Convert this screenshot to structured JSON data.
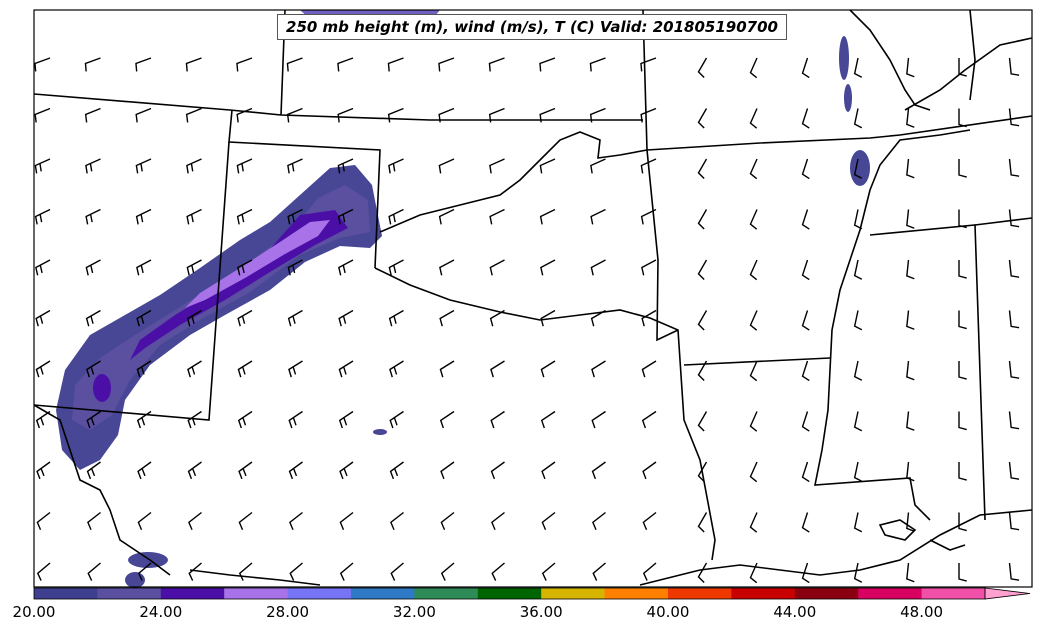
{
  "title": "250 mb height (m), wind (m/s), T (C) Valid: 201805190700",
  "colorbar": {
    "min": 20,
    "max": 52,
    "extend": "max",
    "tick_labels": [
      "20.00",
      "24.00",
      "28.00",
      "32.00",
      "36.00",
      "40.00",
      "44.00",
      "48.00"
    ],
    "colors": [
      "#3f3f8f",
      "#5b4fa0",
      "#4b0fa8",
      "#a873e8",
      "#7575f5",
      "#2f7ac6",
      "#2e8b57",
      "#006400",
      "#d6b400",
      "#ff8000",
      "#ee3800",
      "#c80000",
      "#8b0010",
      "#d80060",
      "#f050a8",
      "#ffa0d0"
    ]
  },
  "colors": {
    "boundary": "#000000",
    "barb": "#000000",
    "background": "#ffffff"
  }
}
